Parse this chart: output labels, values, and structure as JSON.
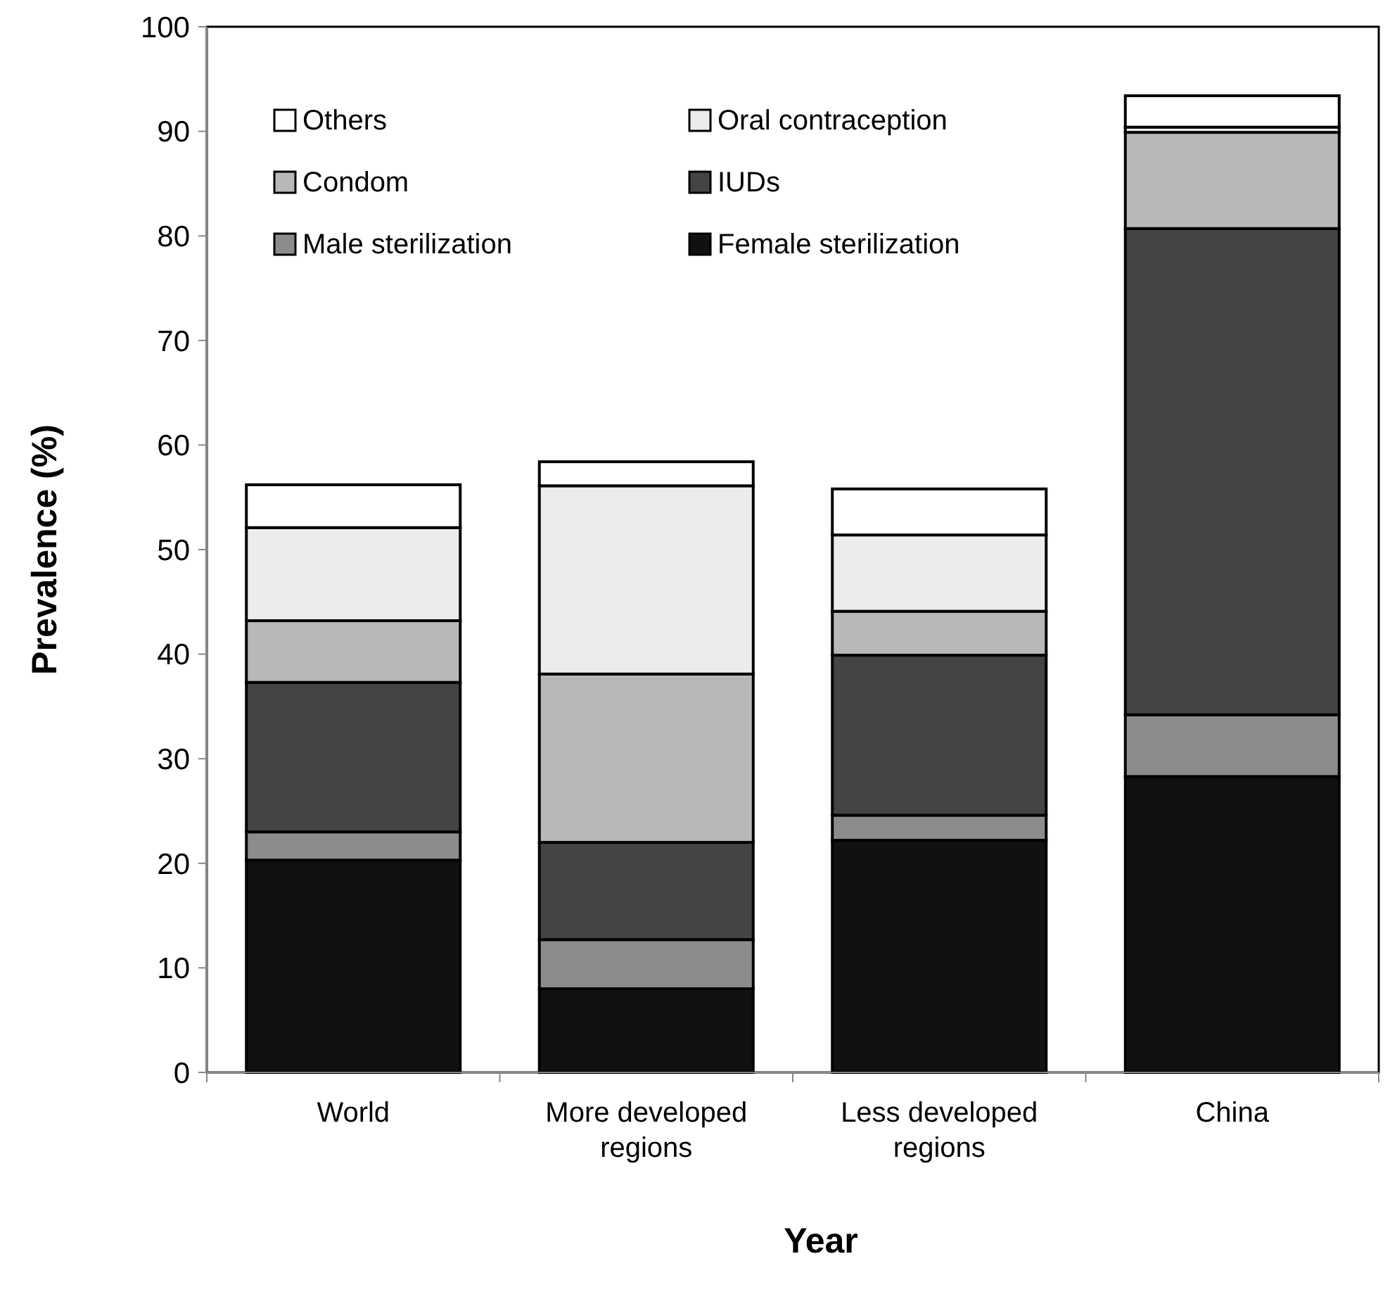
{
  "chart_data": {
    "type": "bar",
    "stacked": true,
    "xlabel": "Year",
    "ylabel": "Prevalence (%)",
    "categories": [
      "World",
      "More developed regions",
      "Less developed regions",
      "China"
    ],
    "series": [
      {
        "name": "Female sterilization",
        "color": "#111111",
        "values": [
          20.3,
          8.0,
          22.2,
          28.3
        ]
      },
      {
        "name": "Male sterilization",
        "color": "#8c8c8c",
        "values": [
          2.7,
          4.7,
          2.4,
          5.9
        ]
      },
      {
        "name": "IUDs",
        "color": "#444444",
        "values": [
          14.3,
          9.3,
          15.3,
          46.5
        ]
      },
      {
        "name": "Condom",
        "color": "#b8b8b8",
        "values": [
          5.9,
          16.1,
          4.2,
          9.2
        ]
      },
      {
        "name": "Oral contraception",
        "color": "#ececec",
        "values": [
          8.9,
          18.0,
          7.3,
          0.5
        ]
      },
      {
        "name": "Others",
        "color": "#ffffff",
        "values": [
          4.1,
          2.3,
          4.4,
          3.0
        ]
      }
    ],
    "ylim": [
      0,
      100
    ],
    "yticks": [
      0,
      10,
      20,
      30,
      40,
      50,
      60,
      70,
      80,
      90,
      100
    ],
    "legend": "top left",
    "grid": false
  }
}
